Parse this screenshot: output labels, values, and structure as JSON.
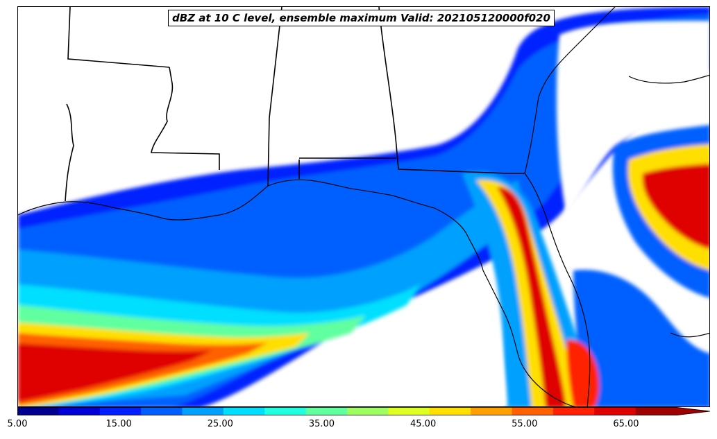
{
  "title": "dBZ at 10 C level, ensemble maximum Valid: 202105120000f020",
  "colorbar": {
    "tick_labels": [
      "5.00",
      "15.00",
      "25.00",
      "35.00",
      "45.00",
      "55.00",
      "65.00"
    ],
    "range": [
      5,
      70
    ],
    "extend": "max",
    "colors": [
      "#00008f",
      "#0000d6",
      "#0020ff",
      "#0060ff",
      "#00a0ff",
      "#00dfff",
      "#20ffdf",
      "#60ff9f",
      "#a0ff60",
      "#dfff20",
      "#ffdf00",
      "#ffa000",
      "#ff6000",
      "#ff2000",
      "#df0000",
      "#9f0000"
    ]
  },
  "chart_data": {
    "type": "heatmap",
    "title": "dBZ at 10 C level, ensemble maximum Valid: 202105120000f020",
    "colorbar_min": 5,
    "colorbar_max": 70,
    "colorbar_ticks": [
      5,
      15,
      25,
      35,
      45,
      55,
      65
    ],
    "levels_step": 4.0625
  }
}
